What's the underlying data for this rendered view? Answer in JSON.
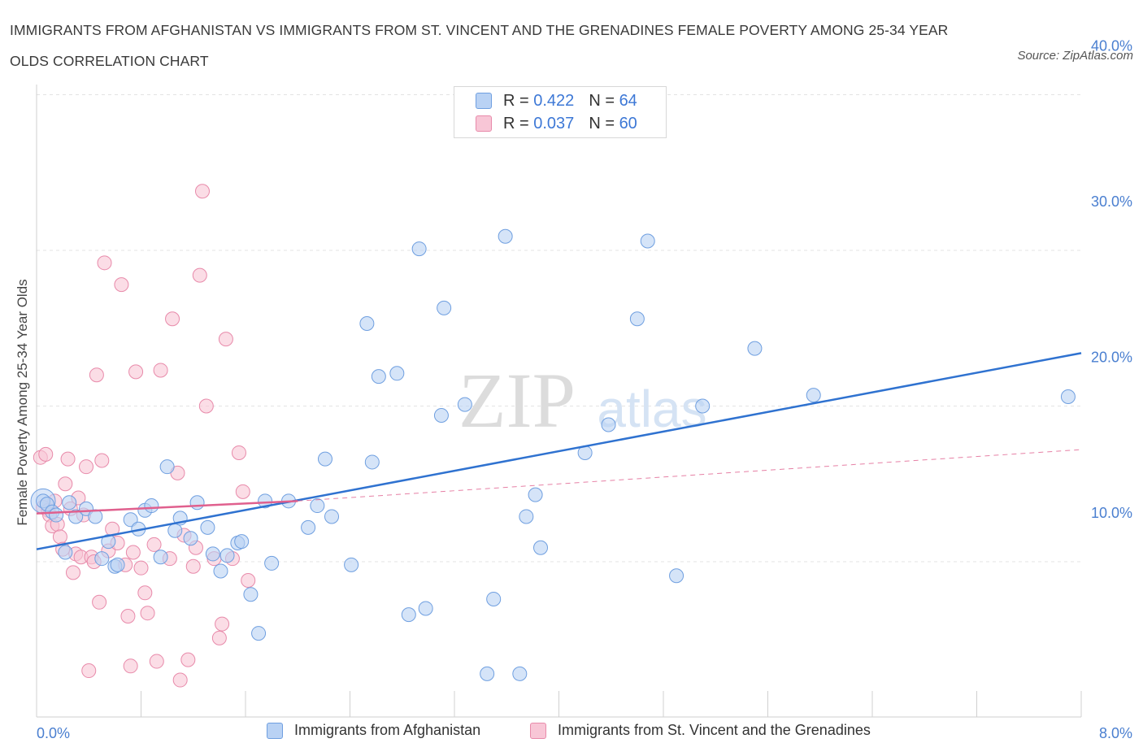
{
  "header": {
    "title": "IMMIGRANTS FROM AFGHANISTAN VS IMMIGRANTS FROM ST. VINCENT AND THE GRENADINES FEMALE POVERTY AMONG 25-34 YEAR OLDS CORRELATION CHART",
    "source": "Source: ZipAtlas.com"
  },
  "legend": {
    "rows": [
      {
        "r_label": "R =",
        "r_value": "0.422",
        "n_label": "N =",
        "n_value": "64"
      },
      {
        "r_label": "R =",
        "r_value": "0.037",
        "n_label": "N =",
        "n_value": "60"
      }
    ]
  },
  "watermark": {
    "zip": "ZIP",
    "atlas": "atlas"
  },
  "colors": {
    "blue_fill": "#b9d2f4",
    "blue_stroke": "#6f9fe0",
    "blue_line": "#2f72d0",
    "pink_fill": "#f8c6d6",
    "pink_stroke": "#e88aaa",
    "pink_line": "#e0608e",
    "grid": "#e3e3e3",
    "tick_text": "#4a7fd0"
  },
  "chart_data": {
    "type": "scatter",
    "title": "IMMIGRANTS FROM AFGHANISTAN VS IMMIGRANTS FROM ST. VINCENT AND THE GRENADINES FEMALE POVERTY AMONG 25-34 YEAR OLDS CORRELATION CHART",
    "xlabel": "",
    "ylabel": "Female Poverty Among 25-34 Year Olds",
    "xlim": [
      0,
      8
    ],
    "ylim": [
      0,
      40
    ],
    "x_tick_labels": [
      "0.0%",
      "8.0%"
    ],
    "y_ticks": [
      10,
      20,
      30,
      40
    ],
    "y_tick_labels": [
      "10.0%",
      "20.0%",
      "30.0%",
      "40.0%"
    ],
    "grid": true,
    "legend_position": "top-center",
    "series": [
      {
        "name": "Immigrants from Afghanistan",
        "color": "#6f9fe0",
        "trend": {
          "x": [
            0,
            8
          ],
          "y": [
            10.8,
            23.4
          ],
          "style": "solid"
        },
        "points": [
          [
            0.05,
            13.9
          ],
          [
            0.08,
            13.7
          ],
          [
            0.12,
            13.2
          ],
          [
            0.15,
            13.0
          ],
          [
            0.22,
            10.6
          ],
          [
            0.25,
            13.8
          ],
          [
            0.3,
            12.9
          ],
          [
            0.38,
            13.4
          ],
          [
            0.45,
            12.9
          ],
          [
            0.5,
            10.2
          ],
          [
            0.55,
            11.3
          ],
          [
            0.6,
            9.7
          ],
          [
            0.62,
            9.8
          ],
          [
            0.72,
            12.7
          ],
          [
            0.78,
            12.1
          ],
          [
            0.83,
            13.3
          ],
          [
            0.88,
            13.6
          ],
          [
            0.95,
            10.3
          ],
          [
            1.0,
            16.1
          ],
          [
            1.06,
            12.0
          ],
          [
            1.1,
            12.8
          ],
          [
            1.18,
            11.5
          ],
          [
            1.23,
            13.8
          ],
          [
            1.31,
            12.2
          ],
          [
            1.35,
            10.5
          ],
          [
            1.41,
            9.4
          ],
          [
            1.46,
            10.4
          ],
          [
            1.54,
            11.2
          ],
          [
            1.57,
            11.3
          ],
          [
            1.64,
            7.9
          ],
          [
            1.7,
            5.4
          ],
          [
            1.75,
            13.9
          ],
          [
            1.8,
            9.9
          ],
          [
            1.93,
            13.9
          ],
          [
            2.08,
            12.2
          ],
          [
            2.15,
            13.6
          ],
          [
            2.21,
            16.6
          ],
          [
            2.26,
            12.9
          ],
          [
            2.41,
            9.8
          ],
          [
            2.53,
            25.3
          ],
          [
            2.57,
            16.4
          ],
          [
            2.62,
            21.9
          ],
          [
            2.76,
            22.1
          ],
          [
            2.85,
            6.6
          ],
          [
            2.93,
            30.1
          ],
          [
            2.98,
            7.0
          ],
          [
            3.1,
            19.4
          ],
          [
            3.12,
            26.3
          ],
          [
            3.28,
            20.1
          ],
          [
            3.45,
            2.8
          ],
          [
            3.5,
            7.6
          ],
          [
            3.59,
            30.9
          ],
          [
            3.7,
            2.8
          ],
          [
            3.75,
            12.9
          ],
          [
            3.82,
            14.3
          ],
          [
            3.86,
            10.9
          ],
          [
            4.2,
            17.0
          ],
          [
            4.38,
            18.8
          ],
          [
            4.6,
            25.6
          ],
          [
            4.68,
            30.6
          ],
          [
            4.9,
            9.1
          ],
          [
            5.1,
            20.0
          ],
          [
            5.5,
            23.7
          ],
          [
            5.95,
            20.7
          ],
          [
            7.9,
            20.6
          ]
        ]
      },
      {
        "name": "Immigrants from St. Vincent and the Grenadines",
        "color": "#e88aaa",
        "trend": {
          "x": [
            0,
            2.0
          ],
          "y": [
            13.1,
            13.9
          ],
          "style": "solid",
          "extended": {
            "x": [
              2.0,
              8
            ],
            "y": [
              13.9,
              17.2
            ],
            "style": "dashed"
          }
        },
        "points": [
          [
            0.03,
            16.7
          ],
          [
            0.05,
            13.5
          ],
          [
            0.07,
            16.9
          ],
          [
            0.09,
            13.3
          ],
          [
            0.1,
            13.0
          ],
          [
            0.12,
            12.3
          ],
          [
            0.14,
            13.9
          ],
          [
            0.16,
            12.4
          ],
          [
            0.18,
            11.6
          ],
          [
            0.2,
            10.8
          ],
          [
            0.22,
            15.0
          ],
          [
            0.24,
            16.6
          ],
          [
            0.26,
            13.4
          ],
          [
            0.28,
            9.3
          ],
          [
            0.3,
            10.5
          ],
          [
            0.32,
            14.1
          ],
          [
            0.34,
            10.3
          ],
          [
            0.36,
            13.0
          ],
          [
            0.38,
            16.1
          ],
          [
            0.4,
            3.0
          ],
          [
            0.42,
            10.3
          ],
          [
            0.44,
            10.0
          ],
          [
            0.46,
            22.0
          ],
          [
            0.48,
            7.4
          ],
          [
            0.5,
            16.5
          ],
          [
            0.52,
            29.2
          ],
          [
            0.55,
            10.7
          ],
          [
            0.58,
            12.1
          ],
          [
            0.62,
            11.2
          ],
          [
            0.65,
            27.8
          ],
          [
            0.68,
            9.8
          ],
          [
            0.7,
            6.5
          ],
          [
            0.72,
            3.3
          ],
          [
            0.74,
            10.6
          ],
          [
            0.76,
            22.2
          ],
          [
            0.8,
            9.6
          ],
          [
            0.83,
            8.0
          ],
          [
            0.85,
            6.7
          ],
          [
            0.9,
            11.1
          ],
          [
            0.92,
            3.6
          ],
          [
            0.95,
            22.3
          ],
          [
            1.02,
            10.2
          ],
          [
            1.04,
            25.6
          ],
          [
            1.08,
            15.7
          ],
          [
            1.1,
            2.4
          ],
          [
            1.13,
            11.7
          ],
          [
            1.16,
            3.7
          ],
          [
            1.2,
            9.7
          ],
          [
            1.22,
            10.9
          ],
          [
            1.25,
            28.4
          ],
          [
            1.27,
            33.8
          ],
          [
            1.3,
            20.0
          ],
          [
            1.36,
            10.2
          ],
          [
            1.4,
            5.1
          ],
          [
            1.42,
            6.0
          ],
          [
            1.45,
            24.3
          ],
          [
            1.5,
            10.2
          ],
          [
            1.55,
            17.0
          ],
          [
            1.58,
            14.5
          ],
          [
            1.62,
            8.8
          ]
        ]
      }
    ]
  },
  "bottom_legend": [
    {
      "label": "Immigrants from Afghanistan"
    },
    {
      "label": "Immigrants from St. Vincent and the Grenadines"
    }
  ]
}
